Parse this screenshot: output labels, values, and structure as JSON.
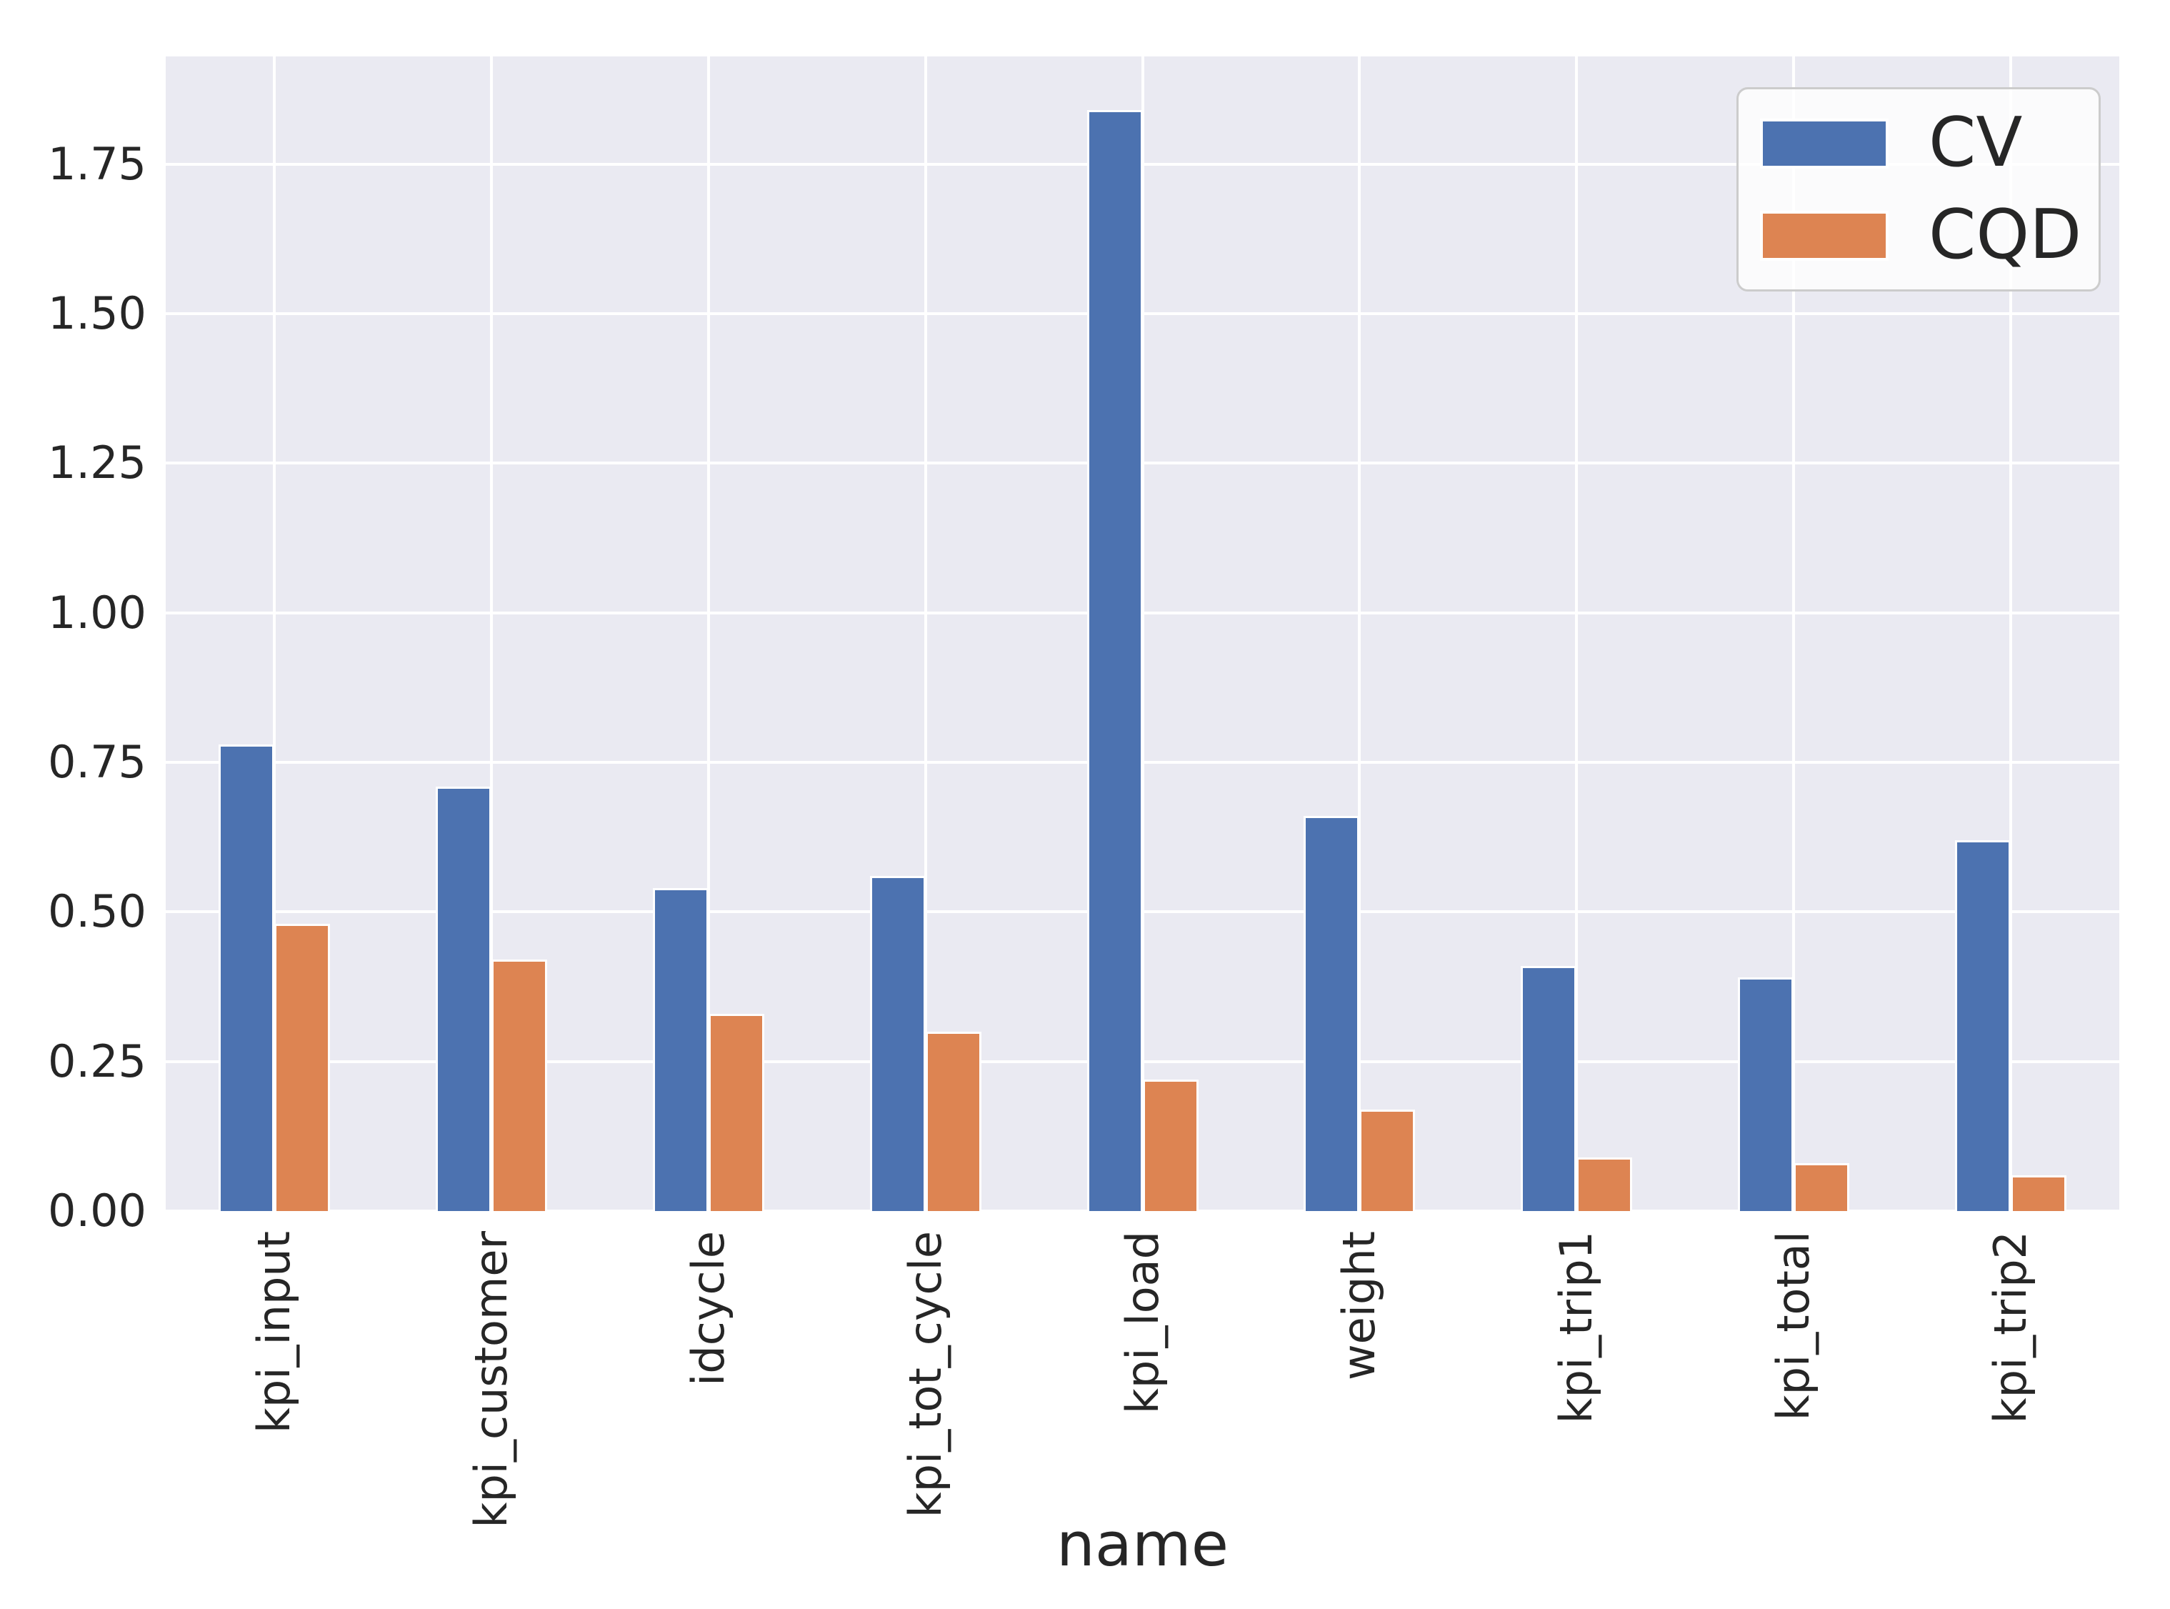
{
  "chart_data": {
    "type": "bar",
    "title": "",
    "xlabel": "name",
    "ylabel": "",
    "categories": [
      "kpi_input",
      "kpi_customer",
      "idcycle",
      "kpi_tot_cycle",
      "kpi_load",
      "weight",
      "kpi_trip1",
      "kpi_total",
      "kpi_trip2"
    ],
    "series": [
      {
        "name": "CV",
        "color": "#4C72B0",
        "values": [
          0.78,
          0.71,
          0.54,
          0.56,
          1.84,
          0.66,
          0.41,
          0.39,
          0.62
        ]
      },
      {
        "name": "CQD",
        "color": "#DD8452",
        "values": [
          0.48,
          0.42,
          0.33,
          0.3,
          0.22,
          0.17,
          0.09,
          0.08,
          0.06
        ]
      }
    ],
    "ylim": [
      0,
      1.93
    ],
    "y_ticks": [
      "0.00",
      "0.25",
      "0.50",
      "0.75",
      "1.00",
      "1.25",
      "1.50",
      "1.75"
    ],
    "grid": "on",
    "grid_color": "#FFFFFF",
    "plot_bg": "#EAEAF2",
    "text_color": "#262626",
    "legend_position": "upper right"
  }
}
